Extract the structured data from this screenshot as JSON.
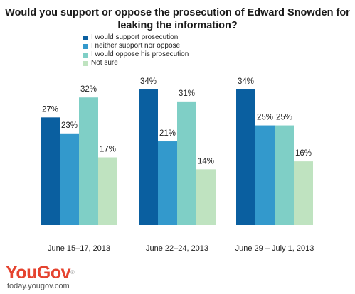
{
  "chart_data": {
    "type": "bar",
    "title": "Would you support or oppose the prosecution of Edward Snowden for leaking the information?",
    "categories": [
      "June 15–17, 2013",
      "June 22–24, 2013",
      "June 29 – July 1, 2013"
    ],
    "series": [
      {
        "name": "I would support prosecution",
        "color": "#0a5fa0",
        "values": [
          27,
          34,
          34
        ]
      },
      {
        "name": "I neither support nor oppose",
        "color": "#3399cc",
        "values": [
          23,
          21,
          25
        ]
      },
      {
        "name": "I would oppose his prosecution",
        "color": "#7fcfc6",
        "values": [
          32,
          31,
          25
        ]
      },
      {
        "name": "Not sure",
        "color": "#bfe3c0",
        "values": [
          17,
          14,
          16
        ]
      }
    ],
    "value_suffix": "%",
    "ylim": [
      0,
      40
    ],
    "grid": false,
    "legend_position": "top-left"
  },
  "brand": {
    "logo_you": "You",
    "logo_gov": "Gov",
    "logo_mark": "®",
    "site": "today.yougov.com"
  }
}
